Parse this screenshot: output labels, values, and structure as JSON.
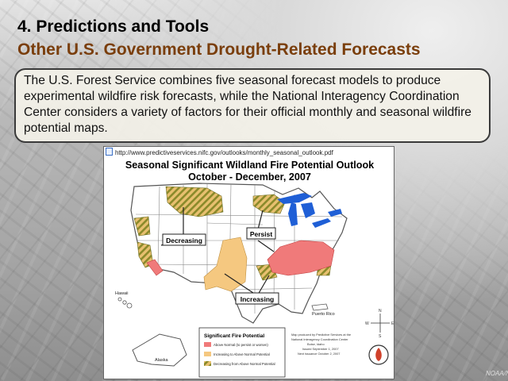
{
  "slide": {
    "title": "4. Predictions and Tools",
    "subtitle": "Other U.S. Government Drought-Related Forecasts",
    "body": "The U.S. Forest Service combines five seasonal forecast models to produce experimental wildfire risk forecasts, while the National Interagency Coordination Center considers a variety of factors for their official monthly and seasonal wildfire potential maps.",
    "credit": "NOAA/NWS"
  },
  "map": {
    "url": "http://www.predictiveservices.nifc.gov/outlooks/monthly_seasonal_outlook.pdf",
    "title": "Seasonal Significant Wildland Fire Potential Outlook",
    "period": "October - December, 2007",
    "callouts": {
      "decreasing": "Decreasing",
      "persist": "Persist",
      "increasing": "Increasing"
    },
    "region_labels": {
      "hawaii": "Hawaii",
      "alaska": "Alaska",
      "puerto_rico": "Puerto Rico"
    },
    "legend": {
      "title": "Significant Fire Potential",
      "items": [
        "Above Normal (to persist or worsen)",
        "Increasing to Above Normal Potential",
        "Decreasing from Above Normal Potential"
      ]
    },
    "source": [
      "Map produced by Predictive Services at the",
      "National Interagency Coordination Center",
      "Boise, Idaho",
      "Issued September 1, 2007",
      "Next issuance October 2, 2007"
    ],
    "compass": {
      "n": "N",
      "w": "W",
      "e": "E",
      "s": "S"
    },
    "colors": {
      "above": "#f07a7a",
      "increasing": "#f5c880",
      "decreasing_stripe": "#8a8a2a",
      "water": "#1f5fd6"
    }
  }
}
